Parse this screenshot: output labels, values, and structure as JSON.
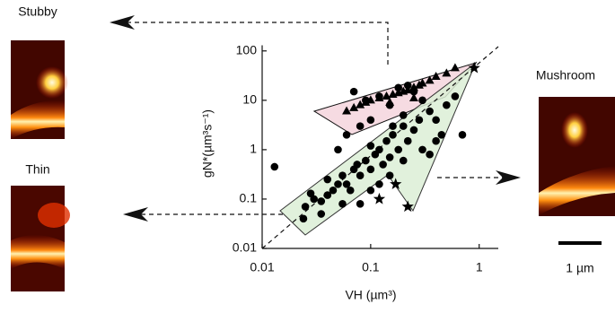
{
  "chart_data": {
    "type": "scatter",
    "xlabel": "VH (µm³)",
    "ylabel": "gN*(µm³s⁻¹)",
    "annotations": [
      "Stubby",
      "Thin",
      "Mushroom",
      "1 µm"
    ],
    "xscale": "log",
    "yscale": "log",
    "xlim": [
      0.01,
      1.5
    ],
    "ylim": [
      0.01,
      130
    ],
    "xticks": [
      0.01,
      0.1,
      1
    ],
    "yticks": [
      0.01,
      0.1,
      1,
      10,
      100
    ],
    "series": [
      {
        "marker": "circle",
        "color": "#000000",
        "x": [
          0.025,
          0.03,
          0.028,
          0.035,
          0.04,
          0.045,
          0.05,
          0.04,
          0.055,
          0.06,
          0.065,
          0.07,
          0.08,
          0.075,
          0.09,
          0.1,
          0.11,
          0.12,
          0.1,
          0.13,
          0.15,
          0.14,
          0.16,
          0.18,
          0.2,
          0.22,
          0.25,
          0.3,
          0.35,
          0.4,
          0.45,
          0.7,
          0.2,
          0.15,
          0.1,
          0.08,
          0.06,
          0.05,
          0.09,
          0.07,
          0.12,
          0.18,
          0.25,
          0.3,
          0.35,
          0.4,
          0.5,
          0.6,
          0.055,
          0.035,
          0.08,
          0.1,
          0.12,
          0.013,
          0.024,
          0.15,
          0.2,
          0.28,
          0.22,
          0.16
        ],
        "values": [
          0.07,
          0.1,
          0.13,
          0.09,
          0.12,
          0.15,
          0.2,
          0.25,
          0.3,
          0.2,
          0.15,
          0.4,
          0.3,
          0.5,
          0.6,
          0.4,
          0.8,
          1,
          1.2,
          0.5,
          0.7,
          1.5,
          2,
          1,
          3,
          1.5,
          2.5,
          1,
          0.8,
          1.5,
          2,
          2,
          5,
          8,
          4,
          3,
          2,
          1,
          10,
          15,
          12,
          18,
          15,
          10,
          6,
          4,
          8,
          12,
          0.08,
          0.05,
          0.08,
          0.15,
          0.2,
          0.45,
          0.04,
          0.3,
          0.6,
          4,
          20,
          3
        ]
      },
      {
        "marker": "triangle",
        "color": "#000000",
        "x": [
          0.06,
          0.07,
          0.08,
          0.09,
          0.1,
          0.12,
          0.14,
          0.16,
          0.18,
          0.2,
          0.22,
          0.25,
          0.28,
          0.3,
          0.35,
          0.4,
          0.5,
          0.15,
          0.25,
          0.6
        ],
        "values": [
          6,
          7,
          8,
          9,
          10,
          11,
          12,
          13,
          14,
          15,
          16,
          18,
          20,
          22,
          25,
          30,
          35,
          9,
          11,
          45
        ]
      },
      {
        "marker": "star",
        "color": "#000000",
        "x": [
          0.12,
          0.17,
          0.22,
          0.9
        ],
        "values": [
          0.1,
          0.2,
          0.07,
          45
        ]
      }
    ]
  }
}
